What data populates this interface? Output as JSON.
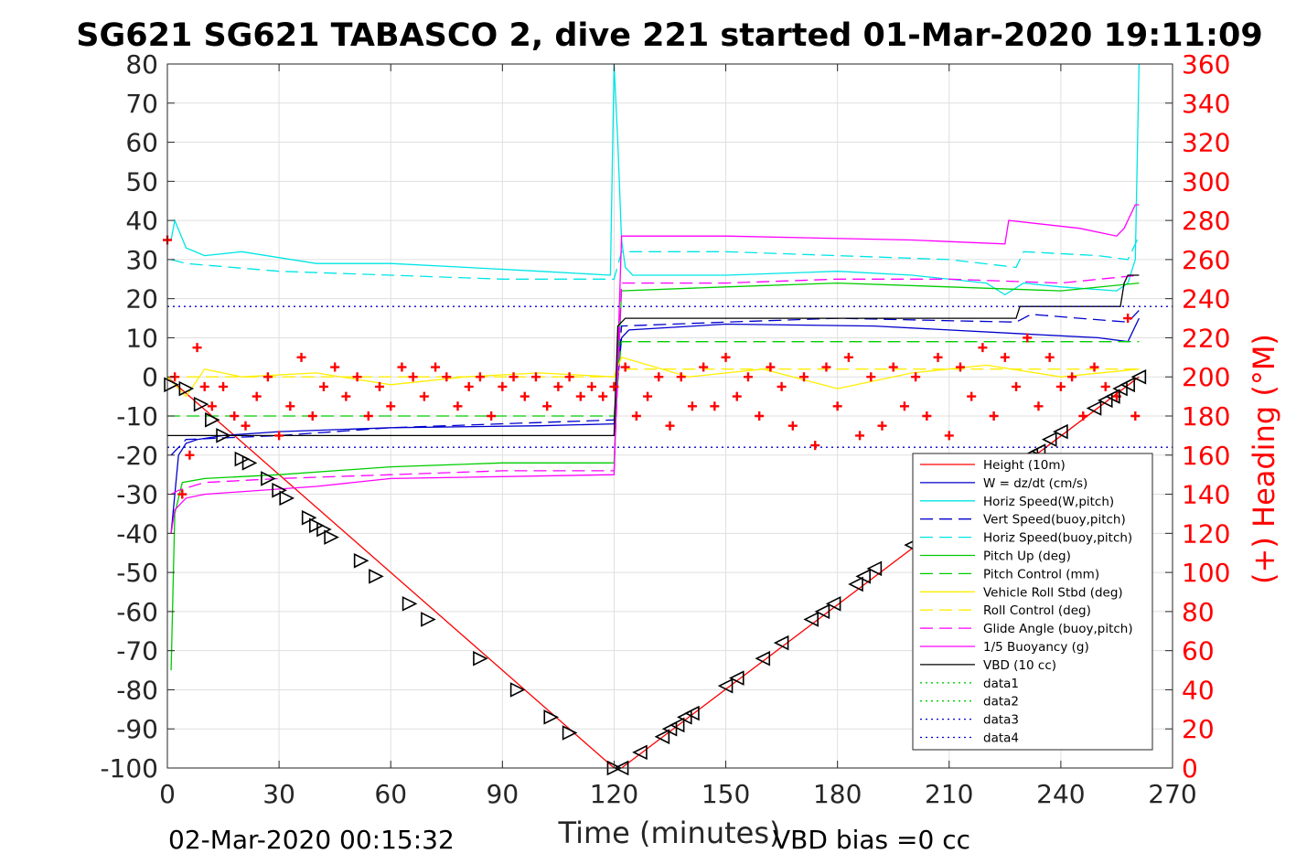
{
  "chart_data": {
    "type": "line",
    "title": "SG621 SG621 TABASCO 2, dive 221 started 01-Mar-2020 19:11:09",
    "xlabel": "Time (minutes)",
    "ylabel_right": "(+) Heading (°M)",
    "footer_left": "02-Mar-2020 00:15:32",
    "footer_right": "VBD bias =0 cc",
    "xlim": [
      0,
      270
    ],
    "ylim": [
      -100,
      80
    ],
    "ylim_right": [
      0,
      360
    ],
    "x_ticks": [
      "0",
      "30",
      "60",
      "90",
      "120",
      "150",
      "180",
      "210",
      "240",
      "270"
    ],
    "y_ticks": [
      "80",
      "70",
      "60",
      "50",
      "40",
      "30",
      "20",
      "10",
      "0",
      "-10",
      "-20",
      "-30",
      "-40",
      "-50",
      "-60",
      "-70",
      "-80",
      "-90",
      "-100"
    ],
    "y_right_ticks": [
      "360",
      "340",
      "320",
      "300",
      "280",
      "260",
      "240",
      "220",
      "200",
      "180",
      "160",
      "140",
      "120",
      "100",
      "80",
      "60",
      "40",
      "20",
      "0"
    ],
    "grid": true,
    "legend_position": "lower-right",
    "series": [
      {
        "name": "Height (10m)",
        "color": "#ff0000",
        "style": "solid",
        "x": [
          0,
          120,
          122,
          261
        ],
        "y": [
          0,
          -100,
          -100,
          0
        ]
      },
      {
        "name": "W = dz/dt (cm/s)",
        "color": "#0000cc",
        "style": "solid",
        "x": [
          1,
          3,
          5,
          8,
          15,
          30,
          60,
          100,
          120,
          122,
          124,
          150,
          190,
          230,
          250,
          258,
          261
        ],
        "y": [
          -40,
          -20,
          -17,
          -16,
          -15,
          -14,
          -13,
          -12.5,
          -12,
          10,
          12,
          13.5,
          13,
          11,
          10,
          9,
          15
        ]
      },
      {
        "name": "Horiz Speed(W,pitch)",
        "color": "#00e5e5",
        "style": "solid",
        "x": [
          1,
          2,
          5,
          10,
          20,
          40,
          60,
          80,
          100,
          119,
          120,
          121,
          122,
          123,
          125,
          150,
          180,
          200,
          220,
          225,
          230,
          240,
          255,
          258,
          260,
          261
        ],
        "y": [
          35,
          40,
          33,
          31,
          32,
          29,
          29,
          28,
          27,
          26,
          80,
          60,
          35,
          28,
          26,
          26,
          27,
          26,
          24,
          21,
          24,
          23,
          22,
          24,
          30,
          80
        ]
      },
      {
        "name": "Vert Speed(buoy,pitch)",
        "color": "#0000cc",
        "style": "dashed",
        "x": [
          1,
          5,
          30,
          60,
          120,
          122,
          150,
          180,
          228,
          232,
          245,
          258,
          261
        ],
        "y": [
          -20,
          -16,
          -15,
          -13,
          -11,
          13,
          14,
          15,
          14,
          16,
          15,
          14,
          17
        ]
      },
      {
        "name": "Horiz Speed(buoy,pitch)",
        "color": "#00e5e5",
        "style": "dashed",
        "x": [
          1,
          5,
          30,
          60,
          90,
          120,
          122,
          150,
          180,
          210,
          228,
          230,
          250,
          258,
          261
        ],
        "y": [
          30,
          29,
          27,
          26,
          25,
          25,
          32,
          32,
          31,
          30,
          28,
          32,
          31,
          30,
          36
        ]
      },
      {
        "name": "Pitch Up (deg)",
        "color": "#00cc00",
        "style": "solid",
        "x": [
          1,
          2,
          4,
          10,
          30,
          60,
          90,
          120,
          122,
          150,
          180,
          210,
          240,
          261
        ],
        "y": [
          -75,
          -35,
          -27,
          -26,
          -25,
          -23,
          -22,
          -22,
          22,
          23,
          24,
          23,
          22,
          24
        ]
      },
      {
        "name": "Pitch Control (mm)",
        "color": "#00cc00",
        "style": "dashed",
        "x": [
          0,
          120,
          122,
          261
        ],
        "y": [
          -10,
          -10,
          9,
          9
        ]
      },
      {
        "name": "Vehicle Roll Stbd (deg)",
        "color": "#ffee00",
        "style": "solid",
        "x": [
          0,
          5,
          10,
          20,
          40,
          60,
          80,
          100,
          120,
          122,
          140,
          160,
          180,
          200,
          220,
          240,
          261
        ],
        "y": [
          0,
          -5,
          2,
          0,
          1,
          -2,
          0,
          1,
          0,
          5,
          0,
          2,
          -3,
          1,
          3,
          0,
          2
        ]
      },
      {
        "name": "Roll Control (deg)",
        "color": "#ffee00",
        "style": "dashed",
        "x": [
          0,
          120,
          122,
          261
        ],
        "y": [
          0,
          0,
          2,
          2
        ]
      },
      {
        "name": "Glide Angle (buoy,pitch)",
        "color": "#ff00ff",
        "style": "dashed",
        "x": [
          1,
          3,
          10,
          30,
          60,
          90,
          120,
          122,
          150,
          180,
          210,
          240,
          261
        ],
        "y": [
          -30,
          -29,
          -27,
          -26,
          -25,
          -24,
          -24,
          24,
          24,
          25,
          25,
          24,
          26
        ]
      },
      {
        "name": "1/5 Buoyancy (g)",
        "color": "#ff00ff",
        "style": "solid",
        "x": [
          1,
          2,
          5,
          10,
          40,
          60,
          120,
          122,
          124,
          150,
          200,
          225,
          226,
          245,
          255,
          257,
          260,
          261
        ],
        "y": [
          -40,
          -34,
          -31,
          -30,
          -28,
          -26,
          -25,
          36,
          36,
          36,
          35,
          34,
          40,
          38,
          36,
          38,
          44,
          44
        ]
      },
      {
        "name": "VBD (10 cc)",
        "color": "#000000",
        "style": "solid",
        "x": [
          0,
          1,
          120,
          121,
          123,
          228,
          229,
          256,
          257,
          258,
          261
        ],
        "y": [
          -15,
          -15,
          -15,
          13,
          15,
          15,
          18,
          18,
          24,
          26,
          26
        ]
      },
      {
        "name": "data1",
        "color": "#00cc00",
        "style": "dotted",
        "x": [],
        "y": []
      },
      {
        "name": "data2",
        "color": "#00cc00",
        "style": "dotted",
        "x": [],
        "y": []
      },
      {
        "name": "data3",
        "color": "#0000cc",
        "style": "dotted",
        "x": [
          0,
          270
        ],
        "y": [
          18,
          18
        ]
      },
      {
        "name": "data4",
        "color": "#0000cc",
        "style": "dotted",
        "x": [
          0,
          270
        ],
        "y": [
          -18,
          -18
        ]
      }
    ],
    "heading_series": {
      "name": "Heading (°M)",
      "color": "#ff0000",
      "marker": "+",
      "x": [
        0,
        2,
        4,
        6,
        8,
        10,
        12,
        15,
        18,
        21,
        24,
        27,
        30,
        33,
        36,
        39,
        42,
        45,
        48,
        51,
        54,
        57,
        60,
        63,
        66,
        69,
        72,
        75,
        78,
        81,
        84,
        87,
        90,
        93,
        96,
        99,
        102,
        105,
        108,
        111,
        114,
        117,
        120,
        123,
        126,
        129,
        132,
        135,
        138,
        141,
        144,
        147,
        150,
        153,
        156,
        159,
        162,
        165,
        168,
        171,
        174,
        177,
        180,
        183,
        186,
        189,
        192,
        195,
        198,
        201,
        204,
        207,
        210,
        213,
        216,
        219,
        222,
        225,
        228,
        231,
        234,
        237,
        240,
        243,
        246,
        249,
        252,
        255,
        258,
        260
      ],
      "y": [
        270,
        200,
        140,
        160,
        215,
        195,
        185,
        195,
        180,
        175,
        190,
        200,
        170,
        185,
        210,
        180,
        195,
        205,
        190,
        200,
        180,
        195,
        185,
        205,
        200,
        190,
        205,
        200,
        185,
        195,
        200,
        180,
        195,
        200,
        190,
        200,
        185,
        195,
        200,
        190,
        195,
        190,
        195,
        205,
        180,
        190,
        200,
        175,
        200,
        185,
        205,
        185,
        210,
        190,
        200,
        180,
        205,
        195,
        175,
        200,
        165,
        205,
        185,
        210,
        170,
        200,
        175,
        205,
        185,
        200,
        180,
        210,
        170,
        205,
        190,
        215,
        180,
        210,
        195,
        220,
        185,
        210,
        195,
        200,
        180,
        205,
        195,
        190,
        230,
        180
      ]
    },
    "height_markers": {
      "x": [
        1,
        5,
        9,
        12,
        15,
        20,
        22,
        27,
        30,
        32,
        38,
        40,
        42,
        44,
        52,
        56,
        65,
        70,
        84,
        94,
        103,
        108,
        120,
        122,
        127,
        133,
        135,
        137,
        139,
        141,
        150,
        153,
        160,
        165,
        173,
        176,
        179,
        185,
        187,
        190,
        200,
        230,
        232,
        234,
        237,
        240,
        249,
        252,
        254,
        256,
        258,
        261
      ],
      "y": [
        -2,
        -3,
        -7,
        -11,
        -15,
        -21,
        -22,
        -26,
        -29,
        -31,
        -36,
        -38,
        -39,
        -41,
        -47,
        -51,
        -58,
        -62,
        -72,
        -80,
        -87,
        -91,
        -100,
        -100,
        -96,
        -92,
        -90,
        -89,
        -87,
        -86,
        -79,
        -77,
        -72,
        -68,
        -62,
        -60,
        -58,
        -53,
        -51,
        -49,
        -43,
        -21,
        -20,
        -19,
        -16,
        -14,
        -8,
        -6,
        -5,
        -3,
        -2,
        0
      ]
    }
  }
}
